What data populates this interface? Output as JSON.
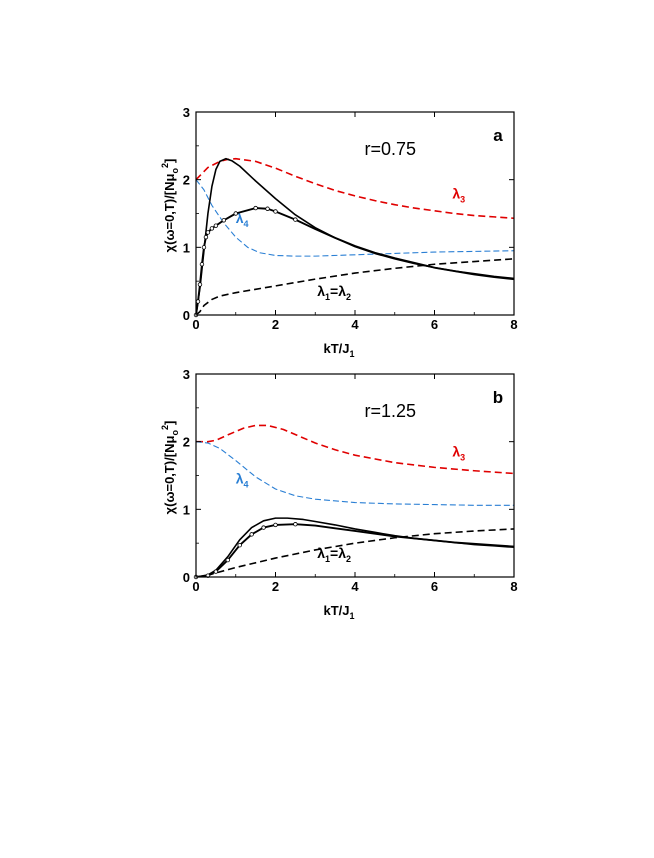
{
  "chart_data": [
    {
      "type": "line",
      "panel_letter": "a",
      "annotation": "r=0.75",
      "xlabel_main": "kT/J",
      "xlabel_sub": "1",
      "ylabel_main": "χ(ω=0,T)/[Nμ",
      "ylabel_sub": "o",
      "ylabel_sup": "2",
      "ylabel_end": "]",
      "xlim": [
        0,
        8
      ],
      "ylim": [
        0,
        3
      ],
      "xticks": [
        "0",
        "2",
        "4",
        "6",
        "8"
      ],
      "yticks": [
        "0",
        "1",
        "2",
        "3"
      ],
      "grid": false,
      "series": [
        {
          "label_main": "λ",
          "label_sub": "3",
          "label_at": [
            6.45,
            1.72
          ],
          "color": "#e00000",
          "style": "dash",
          "width": 1.6,
          "points": [
            [
              0,
              2.0
            ],
            [
              0.3,
              2.18
            ],
            [
              0.6,
              2.27
            ],
            [
              0.8,
              2.3
            ],
            [
              1.0,
              2.31
            ],
            [
              1.5,
              2.27
            ],
            [
              2,
              2.17
            ],
            [
              2.5,
              2.05
            ],
            [
              3,
              1.94
            ],
            [
              3.5,
              1.84
            ],
            [
              4,
              1.76
            ],
            [
              4.5,
              1.69
            ],
            [
              5,
              1.63
            ],
            [
              5.5,
              1.58
            ],
            [
              6,
              1.54
            ],
            [
              6.5,
              1.5
            ],
            [
              7,
              1.47
            ],
            [
              7.5,
              1.45
            ],
            [
              8,
              1.43
            ]
          ]
        },
        {
          "label_main": "λ",
          "label_sub": "4",
          "label_at": [
            1.0,
            1.36
          ],
          "color": "#2a7fd4",
          "style": "dash-thin",
          "width": 1.1,
          "points": [
            [
              0,
              2.0
            ],
            [
              0.2,
              1.85
            ],
            [
              0.4,
              1.62
            ],
            [
              0.7,
              1.36
            ],
            [
              1.0,
              1.15
            ],
            [
              1.3,
              1.0
            ],
            [
              1.6,
              0.92
            ],
            [
              2.0,
              0.88
            ],
            [
              2.5,
              0.87
            ],
            [
              3,
              0.87
            ],
            [
              4,
              0.89
            ],
            [
              5,
              0.91
            ],
            [
              6,
              0.93
            ],
            [
              7,
              0.94
            ],
            [
              8,
              0.95
            ]
          ]
        },
        {
          "label_main": "λ",
          "label_sub": "1",
          "label_mid": "=λ",
          "label_sub2": "2",
          "label_at": [
            3.05,
            0.28
          ],
          "color": "#000000",
          "style": "dash",
          "width": 1.6,
          "points": [
            [
              0,
              0
            ],
            [
              0.1,
              0.05
            ],
            [
              0.2,
              0.14
            ],
            [
              0.4,
              0.23
            ],
            [
              0.6,
              0.28
            ],
            [
              1,
              0.33
            ],
            [
              1.5,
              0.38
            ],
            [
              2,
              0.43
            ],
            [
              3,
              0.53
            ],
            [
              4,
              0.62
            ],
            [
              5,
              0.69
            ],
            [
              6,
              0.75
            ],
            [
              7,
              0.79
            ],
            [
              8,
              0.83
            ]
          ]
        },
        {
          "color": "#000000",
          "style": "solid",
          "width": 1.6,
          "points": [
            [
              0,
              0
            ],
            [
              0.1,
              0.4
            ],
            [
              0.2,
              0.95
            ],
            [
              0.3,
              1.5
            ],
            [
              0.4,
              1.9
            ],
            [
              0.5,
              2.15
            ],
            [
              0.6,
              2.27
            ],
            [
              0.75,
              2.31
            ],
            [
              0.9,
              2.28
            ],
            [
              1.1,
              2.2
            ],
            [
              1.5,
              1.98
            ],
            [
              2,
              1.72
            ],
            [
              2.5,
              1.48
            ],
            [
              3,
              1.29
            ],
            [
              3.5,
              1.14
            ],
            [
              4,
              1.01
            ],
            [
              4.5,
              0.91
            ],
            [
              5,
              0.83
            ],
            [
              5.5,
              0.76
            ],
            [
              6,
              0.7
            ],
            [
              6.5,
              0.65
            ],
            [
              7,
              0.61
            ],
            [
              7.5,
              0.57
            ],
            [
              8,
              0.54
            ]
          ]
        },
        {
          "color": "#000000",
          "style": "solid-markers",
          "width": 1.9,
          "points": [
            [
              0,
              0
            ],
            [
              0.05,
              0.2
            ],
            [
              0.1,
              0.45
            ],
            [
              0.15,
              0.75
            ],
            [
              0.2,
              1.0
            ],
            [
              0.25,
              1.15
            ],
            [
              0.3,
              1.22
            ],
            [
              0.4,
              1.28
            ],
            [
              0.5,
              1.32
            ],
            [
              0.7,
              1.4
            ],
            [
              1.0,
              1.5
            ],
            [
              1.5,
              1.58
            ],
            [
              1.8,
              1.57
            ],
            [
              2,
              1.53
            ],
            [
              2.5,
              1.41
            ],
            [
              3,
              1.27
            ],
            [
              3.5,
              1.14
            ],
            [
              4,
              1.02
            ],
            [
              4.5,
              0.92
            ],
            [
              5,
              0.84
            ],
            [
              5.5,
              0.77
            ],
            [
              6,
              0.7
            ],
            [
              6.5,
              0.65
            ],
            [
              7,
              0.6
            ],
            [
              7.5,
              0.56
            ],
            [
              8,
              0.53
            ]
          ]
        }
      ]
    },
    {
      "type": "line",
      "panel_letter": "b",
      "annotation": "r=1.25",
      "xlabel_main": "kT/J",
      "xlabel_sub": "1",
      "ylabel_main": "χ(ω=0,T)/[Nμ",
      "ylabel_sub": "o",
      "ylabel_sup": "2",
      "ylabel_end": "]",
      "xlim": [
        0,
        8
      ],
      "ylim": [
        0,
        3
      ],
      "xticks": [
        "0",
        "2",
        "4",
        "6",
        "8"
      ],
      "yticks": [
        "0",
        "1",
        "2",
        "3"
      ],
      "grid": false,
      "series": [
        {
          "label_main": "λ",
          "label_sub": "3",
          "label_at": [
            6.45,
            1.78
          ],
          "color": "#e00000",
          "style": "dash",
          "width": 1.6,
          "points": [
            [
              0,
              2.0
            ],
            [
              0.3,
              2.0
            ],
            [
              0.5,
              2.02
            ],
            [
              0.8,
              2.1
            ],
            [
              1.2,
              2.2
            ],
            [
              1.5,
              2.24
            ],
            [
              1.8,
              2.24
            ],
            [
              2.2,
              2.18
            ],
            [
              2.6,
              2.08
            ],
            [
              3,
              1.98
            ],
            [
              3.5,
              1.88
            ],
            [
              4,
              1.8
            ],
            [
              5,
              1.69
            ],
            [
              6,
              1.62
            ],
            [
              7,
              1.57
            ],
            [
              8,
              1.53
            ]
          ]
        },
        {
          "label_main": "λ",
          "label_sub": "4",
          "label_at": [
            1.0,
            1.38
          ],
          "color": "#2a7fd4",
          "style": "dash-thin",
          "width": 1.1,
          "points": [
            [
              0,
              2.0
            ],
            [
              0.3,
              1.98
            ],
            [
              0.6,
              1.9
            ],
            [
              1.0,
              1.72
            ],
            [
              1.5,
              1.48
            ],
            [
              2,
              1.3
            ],
            [
              2.5,
              1.2
            ],
            [
              3,
              1.15
            ],
            [
              4,
              1.1
            ],
            [
              5,
              1.08
            ],
            [
              6,
              1.07
            ],
            [
              7,
              1.06
            ],
            [
              8,
              1.06
            ]
          ]
        },
        {
          "label_main": "λ",
          "label_sub": "1",
          "label_mid": "=λ",
          "label_sub2": "2",
          "label_at": [
            3.05,
            0.28
          ],
          "color": "#000000",
          "style": "dash",
          "width": 1.6,
          "points": [
            [
              0,
              0
            ],
            [
              0.2,
              0.01
            ],
            [
              0.5,
              0.06
            ],
            [
              1,
              0.14
            ],
            [
              1.5,
              0.21
            ],
            [
              2,
              0.28
            ],
            [
              3,
              0.4
            ],
            [
              4,
              0.5
            ],
            [
              5,
              0.58
            ],
            [
              6,
              0.64
            ],
            [
              7,
              0.68
            ],
            [
              8,
              0.71
            ]
          ]
        },
        {
          "color": "#000000",
          "style": "solid",
          "width": 1.6,
          "points": [
            [
              0,
              0
            ],
            [
              0.3,
              0.03
            ],
            [
              0.5,
              0.1
            ],
            [
              0.8,
              0.3
            ],
            [
              1.1,
              0.55
            ],
            [
              1.4,
              0.73
            ],
            [
              1.7,
              0.83
            ],
            [
              2.0,
              0.87
            ],
            [
              2.3,
              0.87
            ],
            [
              2.7,
              0.85
            ],
            [
              3,
              0.82
            ],
            [
              3.5,
              0.77
            ],
            [
              4,
              0.71
            ],
            [
              4.5,
              0.66
            ],
            [
              5,
              0.61
            ],
            [
              5.5,
              0.57
            ],
            [
              6,
              0.54
            ],
            [
              6.5,
              0.51
            ],
            [
              7,
              0.48
            ],
            [
              7.5,
              0.46
            ],
            [
              8,
              0.44
            ]
          ]
        },
        {
          "color": "#000000",
          "style": "solid-markers",
          "width": 1.9,
          "points": [
            [
              0,
              0
            ],
            [
              0.3,
              0.02
            ],
            [
              0.5,
              0.08
            ],
            [
              0.8,
              0.25
            ],
            [
              1.1,
              0.47
            ],
            [
              1.4,
              0.63
            ],
            [
              1.7,
              0.73
            ],
            [
              2.0,
              0.77
            ],
            [
              2.5,
              0.78
            ],
            [
              3,
              0.76
            ],
            [
              3.5,
              0.72
            ],
            [
              4,
              0.68
            ],
            [
              4.5,
              0.64
            ],
            [
              5,
              0.6
            ],
            [
              5.5,
              0.57
            ],
            [
              6,
              0.54
            ],
            [
              6.5,
              0.51
            ],
            [
              7,
              0.49
            ],
            [
              7.5,
              0.47
            ],
            [
              8,
              0.45
            ]
          ]
        }
      ]
    }
  ]
}
